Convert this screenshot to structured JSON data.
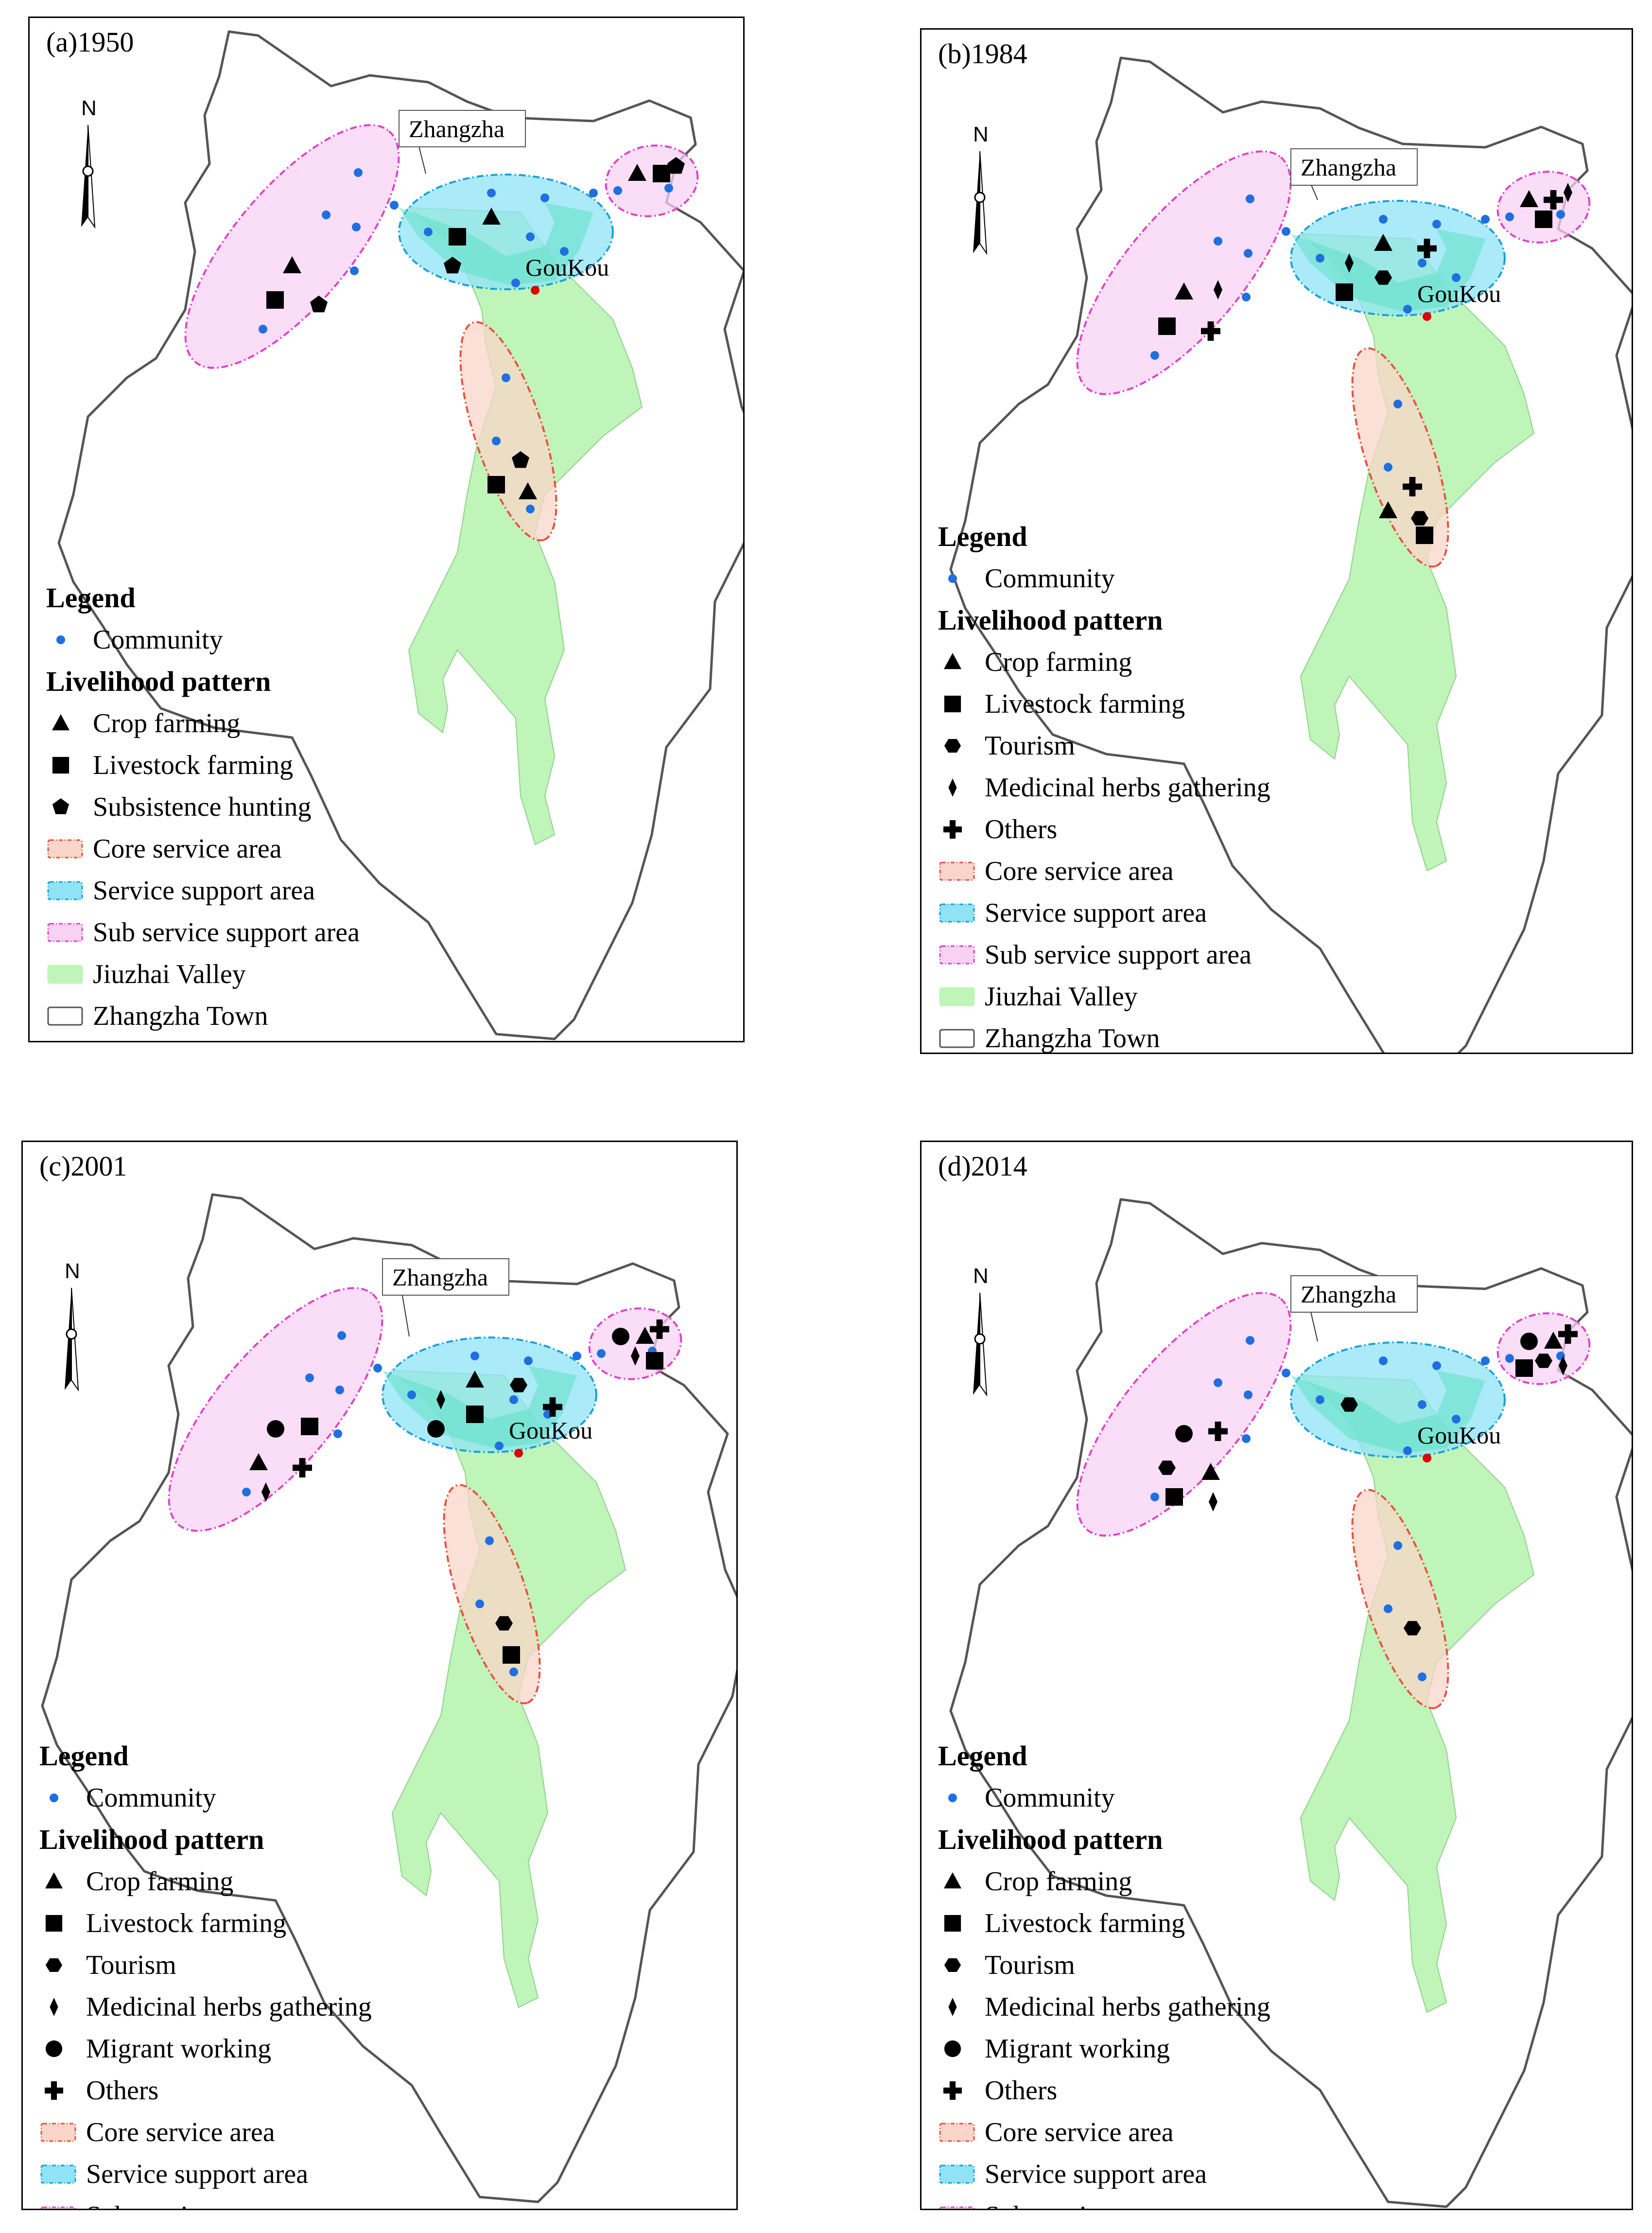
{
  "colors": {
    "core_fill": "#f9d6c9",
    "core_stroke": "#e8503a",
    "support_fill": "#8fe3f5",
    "support_stroke": "#1a9fd8",
    "sub_fill": "#f8d2f3",
    "sub_stroke": "#e040c8",
    "valley_fill": "#bff5b8",
    "town_stroke": "#555555",
    "community": "#1f6fe0",
    "goukou": "#dd0000"
  },
  "labels": {
    "north": "N",
    "zhangzha": "Zhangzha",
    "goukou": "GouKou",
    "legend": "Legend",
    "community": "Community",
    "livelihood": "Livelihood pattern",
    "core": "Core service area",
    "support": "Service support area",
    "sub": "Sub service support area",
    "valley": "Jiuzhai Valley",
    "town": "Zhangzha Town"
  },
  "patterns": {
    "crop": {
      "label": "Crop farming",
      "icon": "triangle-icon"
    },
    "livestock": {
      "label": "Livestock farming",
      "icon": "square-icon"
    },
    "hunting": {
      "label": "Subsistence hunting",
      "icon": "pentagon-icon"
    },
    "tourism": {
      "label": "Tourism",
      "icon": "hexagon-icon"
    },
    "herbs": {
      "label": "Medicinal herbs gathering",
      "icon": "diamond-icon"
    },
    "migrant": {
      "label": "Migrant working",
      "icon": "circle-icon"
    },
    "others": {
      "label": "Others",
      "icon": "cross-icon"
    }
  },
  "panels": [
    {
      "id": "a",
      "title": "(a)1950",
      "legend_patterns": [
        "crop",
        "livestock",
        "hunting"
      ],
      "sub_west": [
        "crop",
        "livestock",
        "hunting"
      ],
      "support": [
        "livestock",
        "crop",
        "hunting"
      ],
      "sub_east": [
        "crop",
        "livestock",
        "hunting"
      ],
      "core": [
        "hunting",
        "crop",
        "livestock"
      ]
    },
    {
      "id": "b",
      "title": "(b)1984",
      "legend_patterns": [
        "crop",
        "livestock",
        "tourism",
        "herbs",
        "others"
      ],
      "sub_west": [
        "crop",
        "livestock",
        "others",
        "herbs"
      ],
      "support": [
        "herbs",
        "crop",
        "livestock",
        "tourism",
        "others"
      ],
      "sub_east": [
        "crop",
        "others",
        "herbs",
        "livestock"
      ],
      "core": [
        "others",
        "tourism",
        "crop",
        "livestock"
      ]
    },
    {
      "id": "c",
      "title": "(c)2001",
      "legend_patterns": [
        "crop",
        "livestock",
        "tourism",
        "herbs",
        "migrant",
        "others"
      ],
      "sub_west": [
        "migrant",
        "crop",
        "others",
        "livestock",
        "herbs"
      ],
      "support": [
        "herbs",
        "crop",
        "migrant",
        "livestock",
        "tourism",
        "others"
      ],
      "sub_east": [
        "migrant",
        "crop",
        "others",
        "herbs",
        "livestock"
      ],
      "core": [
        "tourism",
        "livestock"
      ]
    },
    {
      "id": "d",
      "title": "(d)2014",
      "legend_patterns": [
        "crop",
        "livestock",
        "tourism",
        "herbs",
        "migrant",
        "others"
      ],
      "sub_west": [
        "migrant",
        "tourism",
        "crop",
        "others",
        "livestock",
        "herbs"
      ],
      "support": [
        "tourism"
      ],
      "sub_east": [
        "migrant",
        "crop",
        "others",
        "tourism",
        "herbs",
        "livestock"
      ],
      "core": [
        "tourism"
      ]
    }
  ]
}
